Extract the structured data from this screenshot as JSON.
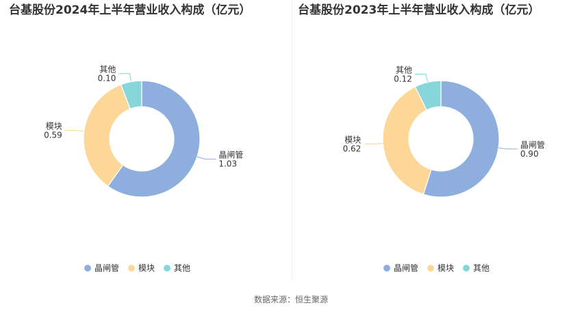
{
  "chart_data": [
    {
      "type": "pie",
      "variant": "donut",
      "title": "台基股份2024年上半年营业收入构成（亿元）",
      "categories": [
        "晶闸管",
        "模块",
        "其他"
      ],
      "values": [
        1.03,
        0.59,
        0.1
      ],
      "value_labels": [
        "1.03",
        "0.59",
        "0.10"
      ],
      "colors": [
        "#8eaedd",
        "#fdd797",
        "#86d6da"
      ],
      "legend": {
        "placement": "bottom",
        "items": [
          "晶闸管",
          "模块",
          "其他"
        ]
      }
    },
    {
      "type": "pie",
      "variant": "donut",
      "title": "台基股份2023年上半年营业收入构成（亿元）",
      "categories": [
        "晶闸管",
        "模块",
        "其他"
      ],
      "values": [
        0.9,
        0.62,
        0.12
      ],
      "value_labels": [
        "0.90",
        "0.62",
        "0.12"
      ],
      "colors": [
        "#8eaedd",
        "#fdd797",
        "#86d6da"
      ],
      "legend": {
        "placement": "bottom",
        "items": [
          "晶闸管",
          "模块",
          "其他"
        ]
      }
    }
  ],
  "footer": {
    "source": "数据来源：恒生聚源"
  }
}
